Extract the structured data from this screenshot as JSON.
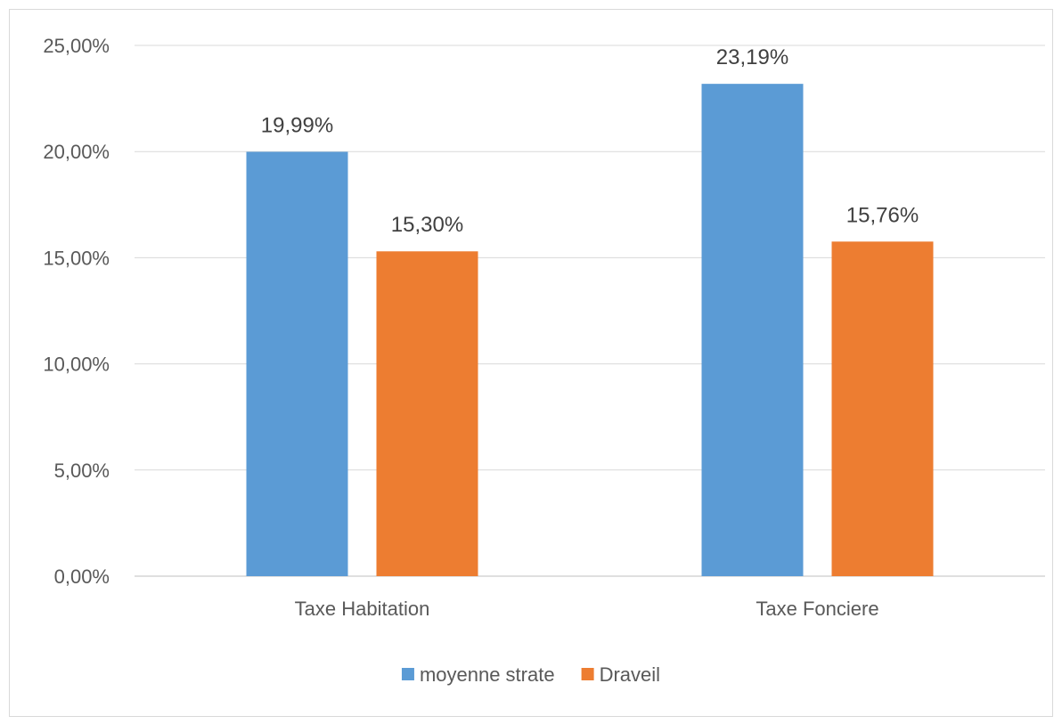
{
  "chart_data": {
    "type": "bar",
    "categories": [
      "Taxe Habitation",
      "Taxe Fonciere"
    ],
    "series": [
      {
        "name": "moyenne strate",
        "values": [
          19.99,
          23.19
        ],
        "labels": [
          "19,99%",
          "23,19%"
        ],
        "color": "#5b9bd5"
      },
      {
        "name": "Draveil",
        "values": [
          15.3,
          15.76
        ],
        "labels": [
          "15,30%",
          "15,76%"
        ],
        "color": "#ed7d31"
      }
    ],
    "ylim": [
      0,
      25
    ],
    "yticks": [
      "0,00%",
      "5,00%",
      "10,00%",
      "15,00%",
      "20,00%",
      "25,00%"
    ],
    "grid": true,
    "legend_position": "bottom"
  }
}
